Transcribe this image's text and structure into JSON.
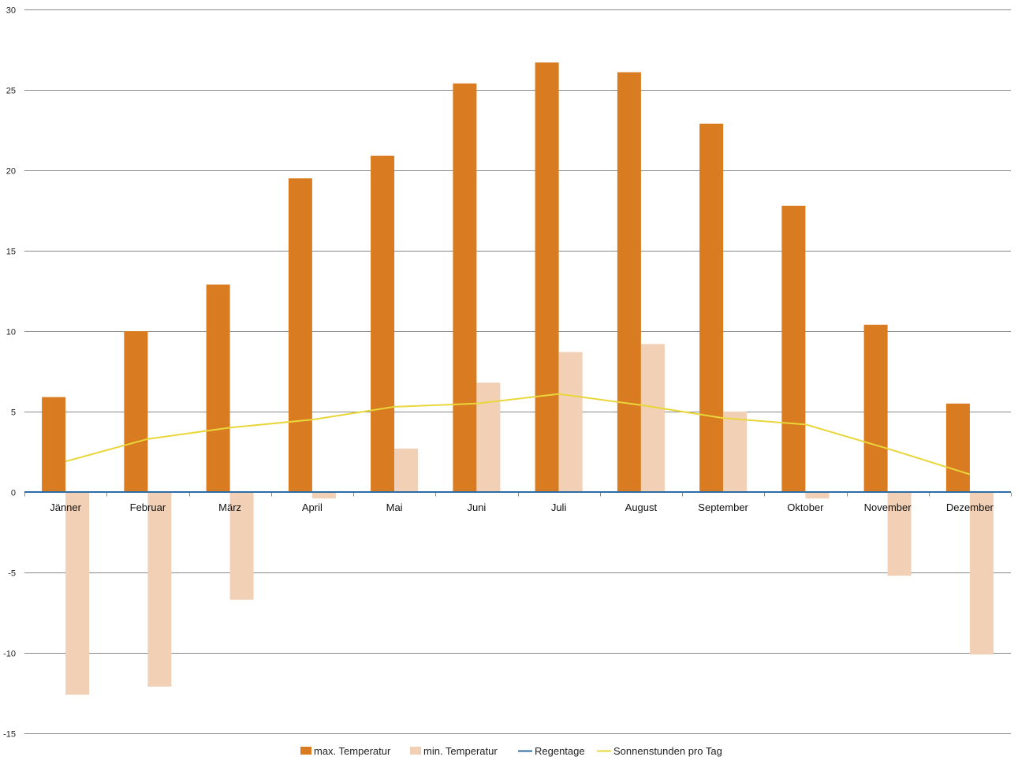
{
  "chart_data": {
    "type": "bar",
    "title": "",
    "xlabel": "",
    "ylabel": "",
    "ylim": [
      -15,
      30
    ],
    "yticks": [
      -15,
      -10,
      -5,
      0,
      5,
      10,
      15,
      20,
      25,
      30
    ],
    "grid": true,
    "legend_position": "bottom",
    "categories": [
      "Jänner",
      "Februar",
      "März",
      "April",
      "Mai",
      "Juni",
      "Juli",
      "August",
      "September",
      "Oktober",
      "November",
      "Dezember"
    ],
    "series": [
      {
        "name": "max. Temperatur",
        "kind": "bar",
        "color": "#d97b20",
        "values": [
          5.9,
          10.0,
          12.9,
          19.5,
          20.9,
          25.4,
          26.7,
          26.1,
          22.9,
          17.8,
          10.4,
          5.5
        ]
      },
      {
        "name": "min. Temperatur",
        "kind": "bar",
        "color": "#f2d0b5",
        "values": [
          -12.6,
          -12.1,
          -6.7,
          -0.4,
          2.7,
          6.8,
          8.7,
          9.2,
          5.0,
          -0.4,
          -5.2,
          -10.1
        ]
      },
      {
        "name": "Regentage",
        "kind": "line",
        "color": "#2e6da4",
        "values": [
          0,
          0,
          0,
          0,
          0,
          0,
          0,
          0,
          0,
          0,
          0,
          0
        ]
      },
      {
        "name": "Sonnenstunden pro Tag",
        "kind": "line",
        "color": "#e8d63a",
        "values": [
          1.9,
          3.3,
          4.0,
          4.5,
          5.3,
          5.5,
          6.1,
          5.4,
          4.6,
          4.2,
          2.7,
          1.1
        ]
      }
    ]
  }
}
